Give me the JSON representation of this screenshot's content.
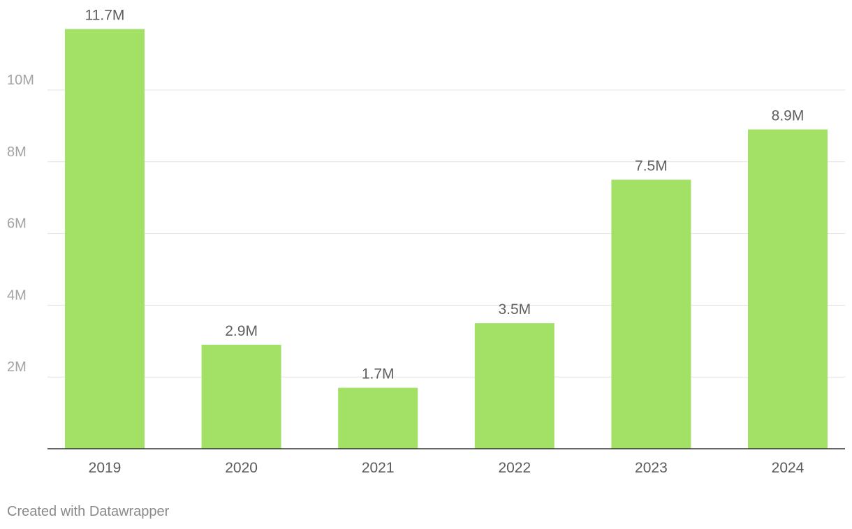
{
  "chart_data": {
    "type": "bar",
    "categories": [
      "2019",
      "2020",
      "2021",
      "2022",
      "2023",
      "2024"
    ],
    "values": [
      11.7,
      2.9,
      1.7,
      3.5,
      7.5,
      8.9
    ],
    "value_labels": [
      "11.7M",
      "2.9M",
      "1.7M",
      "3.5M",
      "7.5M",
      "8.9M"
    ],
    "unit": "M",
    "title": "",
    "xlabel": "",
    "ylabel": "",
    "ylim": [
      0,
      12
    ],
    "yticks": [
      2,
      4,
      6,
      8,
      10
    ],
    "ytick_labels": [
      "2M",
      "4M",
      "6M",
      "8M",
      "10M"
    ],
    "grid": true,
    "legend": "none",
    "bar_color": "#a3e066"
  },
  "footer": {
    "credit": "Created with Datawrapper"
  }
}
